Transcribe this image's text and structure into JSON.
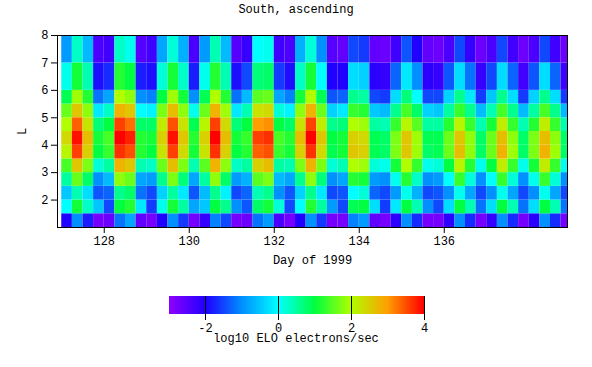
{
  "chart_data": {
    "type": "heatmap",
    "title": "South, ascending",
    "x_label": "Day of 1999",
    "y_label": "L",
    "xlim": [
      126.9,
      138.9
    ],
    "xticks": [
      128,
      130,
      132,
      134,
      136
    ],
    "ylim": [
      1,
      8
    ],
    "yticks": [
      2,
      3,
      4,
      5,
      6,
      7,
      8
    ],
    "x_edges": [
      127,
      127.25,
      127.5,
      127.75,
      128,
      128.25,
      128.5,
      128.75,
      129,
      129.25,
      129.5,
      129.75,
      130,
      130.25,
      130.5,
      130.75,
      131,
      131.25,
      131.5,
      131.75,
      132,
      132.25,
      132.5,
      132.75,
      133,
      133.25,
      133.5,
      133.75,
      134,
      134.25,
      134.5,
      134.75,
      135,
      135.25,
      135.5,
      135.75,
      136,
      136.25,
      136.5,
      136.75,
      137,
      137.25,
      137.5,
      137.75,
      138,
      138.25,
      138.5,
      138.75,
      139
    ],
    "y_edges": [
      1,
      1.5,
      2,
      2.5,
      3,
      3.5,
      4,
      4.5,
      5,
      5.5,
      6,
      7,
      8
    ],
    "values": [
      [
        -2,
        0,
        -0.5,
        0.5,
        1.4,
        2.1,
        2.4,
        2.0,
        1.6,
        0.9,
        0.1,
        -0.9
      ],
      [
        -1,
        1.1,
        0.4,
        1.6,
        2.6,
        3.6,
        3.9,
        3.4,
        2.6,
        1.9,
        1.1,
        0.3
      ],
      [
        -1.8,
        0.3,
        -0.3,
        0.8,
        1.7,
        2.5,
        2.7,
        2.3,
        1.8,
        1.2,
        0.4,
        -0.6
      ],
      [
        -2.8,
        -0.5,
        -1.4,
        -1,
        0.2,
        1.0,
        1.1,
        0.7,
        -0.2,
        -1.2,
        -1.9,
        -2.4
      ],
      [
        -2.7,
        -1.5,
        -1.3,
        -0.6,
        0.5,
        1.3,
        1.4,
        1.0,
        0.3,
        -0.8,
        -1.7,
        -2.3
      ],
      [
        -1.2,
        1.0,
        0.6,
        1.8,
        2.8,
        3.7,
        4.0,
        3.6,
        2.8,
        2.0,
        1.2,
        0.3
      ],
      [
        -0.8,
        1.2,
        0.8,
        1.6,
        2.6,
        3.5,
        3.8,
        3.3,
        2.6,
        1.8,
        1.0,
        0.1
      ],
      [
        -2.6,
        -0.2,
        -1.2,
        -0.8,
        0.4,
        1.2,
        1.2,
        0.8,
        0.0,
        -1.0,
        -1.8,
        -2.5
      ],
      [
        -2.8,
        -1.6,
        -1.5,
        -0.9,
        0.3,
        1.0,
        1.1,
        0.8,
        -0.1,
        -1.1,
        -1.9,
        -2.3
      ],
      [
        -2.0,
        0.1,
        -0.4,
        0.6,
        1.6,
        2.3,
        2.5,
        2.2,
        1.7,
        1.0,
        0.2,
        -0.8
      ],
      [
        -1.0,
        1.1,
        0.5,
        1.7,
        2.7,
        3.6,
        3.9,
        3.5,
        2.7,
        1.9,
        1.1,
        0.2
      ],
      [
        -1.6,
        0.5,
        -0.2,
        0.7,
        1.7,
        2.4,
        2.6,
        2.3,
        1.8,
        1.1,
        0.3,
        -0.7
      ],
      [
        -2.8,
        -0.8,
        -1.4,
        -0.8,
        0.4,
        1.1,
        1.2,
        0.9,
        0.1,
        -1.0,
        -1.8,
        -2.4
      ],
      [
        -2.2,
        -0.5,
        -0.6,
        0.5,
        1.5,
        2.3,
        2.5,
        2.1,
        1.6,
        0.9,
        0.1,
        -0.9
      ],
      [
        -1.1,
        1.0,
        0.6,
        1.8,
        2.8,
        3.7,
        4.0,
        3.6,
        2.8,
        2.0,
        1.2,
        0.4
      ],
      [
        -1.5,
        0.6,
        -0.1,
        0.8,
        1.8,
        2.5,
        2.7,
        2.4,
        1.9,
        1.2,
        0.4,
        -0.6
      ],
      [
        -2.8,
        -1.0,
        -1.5,
        -0.9,
        0.3,
        1.0,
        1.1,
        0.7,
        -0.2,
        -1.2,
        -1.9,
        -2.5
      ],
      [
        -2.7,
        -1.4,
        -1.3,
        -0.7,
        0.5,
        1.2,
        1.3,
        1.0,
        0.4,
        -0.6,
        -1.5,
        -2.2
      ],
      [
        -1.2,
        0.8,
        0.4,
        1.5,
        2.5,
        3.4,
        3.6,
        3.0,
        2.3,
        1.5,
        0.7,
        0.0
      ],
      [
        -0.9,
        1.1,
        0.6,
        1.7,
        2.7,
        3.5,
        3.7,
        3.1,
        2.4,
        1.6,
        0.8,
        0.1
      ],
      [
        -2.4,
        0.2,
        -1.0,
        -0.6,
        0.5,
        1.3,
        1.4,
        1.0,
        0.2,
        -0.8,
        -1.6,
        -2.3
      ],
      [
        -2.8,
        -1.5,
        -1.4,
        -0.8,
        0.4,
        1.1,
        1.2,
        0.8,
        -0.1,
        -1.1,
        -1.9,
        -2.4
      ],
      [
        -2.0,
        0.0,
        -0.4,
        0.6,
        1.7,
        2.5,
        2.7,
        2.3,
        1.8,
        1.1,
        0.3,
        -0.7
      ],
      [
        -1.0,
        1.2,
        0.6,
        1.8,
        2.8,
        3.7,
        4.0,
        3.6,
        2.8,
        2.0,
        1.1,
        0.2
      ],
      [
        -1.6,
        0.5,
        -0.2,
        0.7,
        1.7,
        2.4,
        2.6,
        2.2,
        1.6,
        0.9,
        0.0,
        -1.0
      ],
      [
        -2.8,
        -0.9,
        -1.5,
        -1.0,
        0.2,
        0.9,
        1.0,
        0.6,
        -0.4,
        -1.4,
        -2.0,
        -2.5
      ],
      [
        -2.8,
        -1.5,
        -1.4,
        -0.8,
        0.4,
        1.1,
        1.1,
        0.7,
        -0.2,
        -1.3,
        -2.0,
        -2.6
      ],
      [
        -1.1,
        0.9,
        0.0,
        1.2,
        2.0,
        2.6,
        2.5,
        2.0,
        1.3,
        0.6,
        -0.3,
        -1.5
      ],
      [
        -0.9,
        1.0,
        0.2,
        1.1,
        1.9,
        2.5,
        2.4,
        1.9,
        1.2,
        0.5,
        -0.4,
        -1.6
      ],
      [
        -2.6,
        -0.3,
        -1.3,
        -0.9,
        0.2,
        0.9,
        0.9,
        0.5,
        -0.5,
        -1.5,
        -2.1,
        -2.6
      ],
      [
        -2.8,
        -1.6,
        -1.5,
        -1.0,
        0.1,
        0.8,
        0.8,
        0.4,
        -0.6,
        -1.6,
        -2.2,
        -2.7
      ],
      [
        -2.1,
        -0.2,
        -0.9,
        0.1,
        1.1,
        1.7,
        1.7,
        1.3,
        0.6,
        -0.3,
        -1.3,
        -2.3
      ],
      [
        -1.0,
        1.0,
        0.1,
        1.2,
        2.0,
        2.6,
        2.6,
        2.1,
        1.4,
        0.7,
        -0.2,
        -1.4
      ],
      [
        -1.7,
        0.4,
        -0.7,
        0.3,
        1.3,
        1.9,
        1.9,
        1.5,
        0.8,
        0.0,
        -1.0,
        -2.0
      ],
      [
        -2.8,
        -1.0,
        -1.5,
        -1.0,
        0.1,
        0.8,
        0.9,
        0.5,
        -0.4,
        -1.5,
        -2.1,
        -2.6
      ],
      [
        -2.8,
        -1.5,
        -1.4,
        -0.9,
        0.2,
        0.9,
        0.9,
        0.5,
        -0.5,
        -1.5,
        -2.2,
        -2.7
      ],
      [
        -2.1,
        -0.3,
        -1.0,
        0.0,
        1.0,
        1.6,
        1.6,
        1.2,
        0.5,
        -0.4,
        -1.4,
        -2.4
      ],
      [
        -1.0,
        1.0,
        0.1,
        1.3,
        2.1,
        2.7,
        2.6,
        2.1,
        1.3,
        0.6,
        -0.3,
        -1.5
      ],
      [
        -1.7,
        0.4,
        -0.8,
        0.2,
        1.2,
        1.8,
        1.8,
        1.3,
        0.6,
        -0.2,
        -1.2,
        -2.2
      ],
      [
        -2.8,
        -1.2,
        -1.5,
        -1.0,
        0.1,
        0.8,
        0.8,
        0.4,
        -0.6,
        -1.6,
        -2.2,
        -2.7
      ],
      [
        -2.2,
        -0.3,
        -1.0,
        0.0,
        1.0,
        1.6,
        1.6,
        1.1,
        0.4,
        -0.5,
        -1.5,
        -2.4
      ],
      [
        -1.0,
        1.0,
        0.1,
        1.3,
        2.2,
        2.8,
        2.7,
        2.2,
        1.4,
        0.6,
        -0.3,
        -1.5
      ],
      [
        -1.7,
        0.4,
        -0.8,
        0.2,
        1.3,
        1.9,
        1.8,
        1.3,
        0.6,
        -0.3,
        -1.3,
        -2.3
      ],
      [
        -2.8,
        -1.2,
        -1.5,
        -1.0,
        0.1,
        0.8,
        0.8,
        0.4,
        -0.6,
        -1.6,
        -2.3,
        -2.7
      ],
      [
        -2.1,
        -0.3,
        -1.0,
        0.1,
        1.1,
        1.7,
        1.7,
        1.2,
        0.5,
        -0.4,
        -1.4,
        -2.4
      ],
      [
        -1.0,
        1.0,
        0.1,
        1.3,
        2.2,
        2.8,
        2.7,
        2.2,
        1.4,
        0.6,
        -0.3,
        -1.5
      ],
      [
        -1.7,
        0.4,
        -0.8,
        0.2,
        1.3,
        1.9,
        1.8,
        1.3,
        0.6,
        -0.3,
        -1.3,
        -2.3
      ],
      [
        -2.8,
        -1.2,
        -1.5,
        -1.0,
        0.1,
        0.8,
        0.8,
        0.4,
        -0.6,
        -1.6,
        -2.3,
        -2.7
      ]
    ],
    "colorbar": {
      "label": "log10 ELO electrons/sec",
      "range": [
        -3,
        4
      ],
      "ticks": [
        -2,
        0,
        2,
        4
      ]
    }
  }
}
